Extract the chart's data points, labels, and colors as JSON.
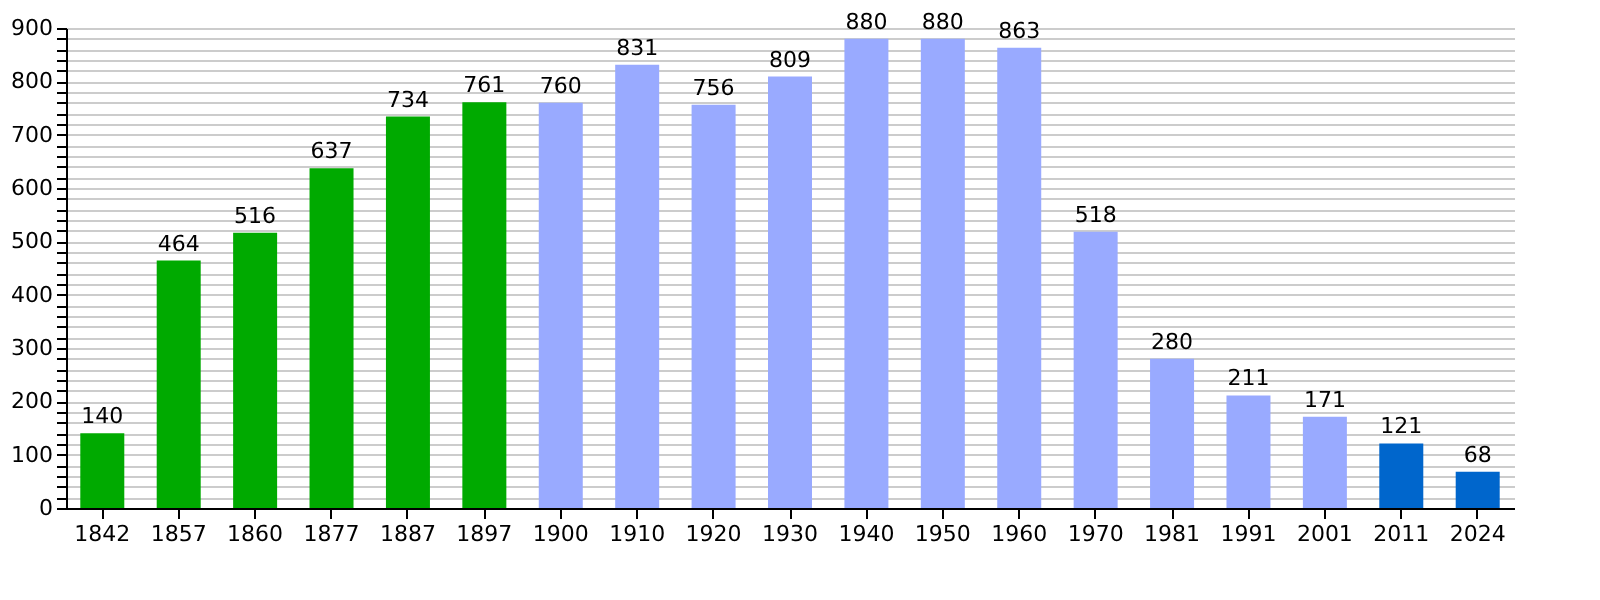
{
  "chart_data": {
    "type": "bar",
    "categories": [
      "1842",
      "1857",
      "1860",
      "1877",
      "1887",
      "1897",
      "1900",
      "1910",
      "1920",
      "1930",
      "1940",
      "1950",
      "1960",
      "1970",
      "1981",
      "1991",
      "2001",
      "2011",
      "2024"
    ],
    "values": [
      140,
      464,
      516,
      637,
      734,
      761,
      760,
      831,
      756,
      809,
      880,
      880,
      863,
      518,
      280,
      211,
      171,
      121,
      68
    ],
    "colors": [
      "#00aa00",
      "#00aa00",
      "#00aa00",
      "#00aa00",
      "#00aa00",
      "#00aa00",
      "#99aaff",
      "#99aaff",
      "#99aaff",
      "#99aaff",
      "#99aaff",
      "#99aaff",
      "#99aaff",
      "#99aaff",
      "#99aaff",
      "#99aaff",
      "#99aaff",
      "#0066cc",
      "#0066cc"
    ],
    "ylim": [
      0,
      900
    ],
    "yticks": [
      0,
      {
        "value": 20,
        "label": null
      },
      {
        "value": 40,
        "label": null
      },
      {
        "value": 60,
        "label": null
      },
      {
        "value": 80,
        "label": null
      },
      100,
      {
        "value": 120,
        "label": null
      },
      {
        "value": 140,
        "label": null
      },
      {
        "value": 160,
        "label": null
      },
      {
        "value": 180,
        "label": null
      },
      200,
      {
        "value": 220,
        "label": null
      },
      {
        "value": 240,
        "label": null
      },
      {
        "value": 260,
        "label": null
      },
      {
        "value": 280,
        "label": null
      },
      300,
      {
        "value": 320,
        "label": null
      },
      {
        "value": 340,
        "label": null
      },
      {
        "value": 360,
        "label": null
      },
      {
        "value": 380,
        "label": null
      },
      400,
      {
        "value": 420,
        "label": null
      },
      {
        "value": 440,
        "label": null
      },
      {
        "value": 460,
        "label": null
      },
      {
        "value": 480,
        "label": null
      },
      500,
      {
        "value": 520,
        "label": null
      },
      {
        "value": 540,
        "label": null
      },
      {
        "value": 560,
        "label": null
      },
      {
        "value": 580,
        "label": null
      },
      600,
      {
        "value": 620,
        "label": null
      },
      {
        "value": 640,
        "label": null
      },
      {
        "value": 660,
        "label": null
      },
      {
        "value": 680,
        "label": null
      },
      700,
      {
        "value": 720,
        "label": null
      },
      {
        "value": 740,
        "label": null
      },
      {
        "value": 760,
        "label": null
      },
      {
        "value": 780,
        "label": null
      },
      800,
      {
        "value": 820,
        "label": null
      },
      {
        "value": 840,
        "label": null
      },
      {
        "value": 860,
        "label": null
      },
      {
        "value": 880,
        "label": null
      },
      900
    ],
    "grid": "y",
    "data_labels": true
  }
}
